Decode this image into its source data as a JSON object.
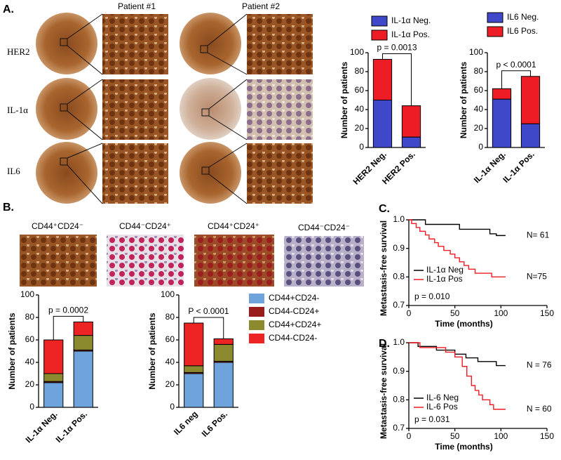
{
  "figure": {
    "panel_labels": [
      "A.",
      "B.",
      "C.",
      "D."
    ],
    "patients": [
      "Patient #1",
      "Patient #2"
    ],
    "stains": [
      "HER2",
      "IL-1α",
      "IL6"
    ],
    "phenotypes": [
      "CD44⁺CD24⁻",
      "CD44⁻CD24⁺",
      "CD44⁺CD24⁺",
      "CD44⁻CD24⁻"
    ]
  },
  "chart_data": [
    {
      "type": "bar",
      "stacked": true,
      "categories": [
        "HER2 Neg.",
        "HER2 Pos."
      ],
      "series": [
        {
          "name": "IL-1α Neg.",
          "color": "#3f48c8",
          "values": [
            50,
            11
          ]
        },
        {
          "name": "IL-1α Pos.",
          "color": "#ee1c24",
          "values": [
            43,
            33
          ]
        }
      ],
      "ylim": [
        0,
        100
      ],
      "yticks": [
        0,
        20,
        40,
        60,
        80,
        100
      ],
      "ylabel": "Number of patients",
      "annotation": "p = 0.0013"
    },
    {
      "type": "bar",
      "stacked": true,
      "categories": [
        "IL-1α Neg.",
        "IL-1α Pos."
      ],
      "series": [
        {
          "name": "IL6 Neg.",
          "color": "#3f48c8",
          "values": [
            51,
            25
          ]
        },
        {
          "name": "IL6 Pos.",
          "color": "#ee1c24",
          "values": [
            11,
            50
          ]
        }
      ],
      "ylim": [
        0,
        100
      ],
      "yticks": [
        0,
        20,
        40,
        60,
        80,
        100
      ],
      "ylabel": "Number of patients",
      "annotation": "p < 0.0001"
    },
    {
      "type": "bar",
      "stacked": true,
      "categories": [
        "IL-1α Neg.",
        "IL-1α Pos."
      ],
      "series": [
        {
          "color": "#6fa3dc",
          "values": [
            22,
            50
          ]
        },
        {
          "color": "#9b1c1c",
          "values": [
            1,
            1
          ]
        },
        {
          "color": "#8c8a2e",
          "values": [
            7,
            13
          ]
        },
        {
          "color": "#ee2424",
          "values": [
            30,
            12
          ]
        }
      ],
      "ylim": [
        0,
        100
      ],
      "yticks": [
        0,
        20,
        40,
        60,
        80,
        100
      ],
      "ylabel": "Number of patients",
      "annotation": "p = 0.0002"
    },
    {
      "type": "bar",
      "stacked": true,
      "categories": [
        "IL6 neg",
        "IL6 Pos."
      ],
      "series": [
        {
          "name": "CD44+CD24-",
          "color": "#6fa3dc",
          "values": [
            30,
            40
          ]
        },
        {
          "name": "CD44-CD24+",
          "color": "#9b1c1c",
          "values": [
            1,
            1
          ]
        },
        {
          "name": "CD44+CD24+",
          "color": "#8c8a2e",
          "values": [
            6,
            15
          ]
        },
        {
          "name": "CD44-CD24-",
          "color": "#ee2424",
          "values": [
            38,
            5
          ]
        }
      ],
      "ylim": [
        0,
        100
      ],
      "yticks": [
        0,
        20,
        40,
        60,
        80,
        100
      ],
      "ylabel": "Number of patients",
      "annotation": "P < 0.0001"
    },
    {
      "type": "line",
      "xlabel": "Time (months)",
      "ylabel": "Metastasis-free survival",
      "xlim": [
        0,
        150
      ],
      "xticks": [
        0,
        50,
        100,
        150
      ],
      "ylim": [
        0.7,
        1.0
      ],
      "yticks": [
        0.7,
        0.8,
        0.9,
        {
          "value": 1,
          "label": "1.0"
        }
      ],
      "annotation": "p = 0.010",
      "series": [
        {
          "name": "IL-1α Neg",
          "color": "#000000",
          "end_label": "N= 61",
          "x": [
            0,
            18,
            18,
            55,
            55,
            88,
            88,
            95,
            95,
            105
          ],
          "values": [
            1,
            1,
            0.984,
            0.984,
            0.967,
            0.967,
            0.951,
            0.951,
            0.945,
            0.945
          ]
        },
        {
          "name": "IL-1α Pos",
          "color": "#ee1c24",
          "end_label": "N=75",
          "x": [
            0,
            3,
            3,
            8,
            8,
            12,
            12,
            18,
            18,
            22,
            22,
            28,
            28,
            32,
            32,
            38,
            38,
            45,
            45,
            50,
            50,
            55,
            55,
            60,
            60,
            65,
            65,
            72,
            72,
            90,
            90,
            105
          ],
          "values": [
            1,
            1,
            0.987,
            0.987,
            0.973,
            0.973,
            0.96,
            0.96,
            0.947,
            0.947,
            0.933,
            0.933,
            0.92,
            0.92,
            0.907,
            0.907,
            0.893,
            0.893,
            0.88,
            0.88,
            0.867,
            0.867,
            0.853,
            0.853,
            0.84,
            0.84,
            0.827,
            0.827,
            0.813,
            0.813,
            0.8,
            0.8
          ]
        }
      ]
    },
    {
      "type": "line",
      "xlabel": "Time (months)",
      "ylabel": "Metastasis-free survival",
      "xlim": [
        0,
        150
      ],
      "xticks": [
        0,
        50,
        100,
        150
      ],
      "ylim": [
        0.7,
        1.0
      ],
      "yticks": [
        0.7,
        0.8,
        0.9,
        {
          "value": 1,
          "label": "1.0"
        }
      ],
      "annotation": "p = 0.031",
      "series": [
        {
          "name": "IL-6 Neg",
          "color": "#000000",
          "end_label": "N = 76",
          "x": [
            0,
            10,
            10,
            30,
            30,
            50,
            50,
            62,
            62,
            75,
            75,
            95,
            95,
            105
          ],
          "values": [
            1,
            1,
            0.987,
            0.987,
            0.974,
            0.974,
            0.96,
            0.96,
            0.947,
            0.947,
            0.934,
            0.934,
            0.92,
            0.92
          ]
        },
        {
          "name": "IL-6 Pos",
          "color": "#ee1c24",
          "end_label": "N = 60",
          "x": [
            0,
            12,
            12,
            40,
            40,
            50,
            50,
            58,
            58,
            63,
            63,
            68,
            68,
            72,
            72,
            76,
            76,
            80,
            80,
            88,
            88,
            92,
            92,
            105
          ],
          "values": [
            1,
            1,
            0.983,
            0.983,
            0.967,
            0.967,
            0.95,
            0.95,
            0.917,
            0.917,
            0.883,
            0.883,
            0.85,
            0.85,
            0.833,
            0.833,
            0.817,
            0.817,
            0.8,
            0.8,
            0.783,
            0.783,
            0.767,
            0.767
          ]
        }
      ]
    }
  ]
}
